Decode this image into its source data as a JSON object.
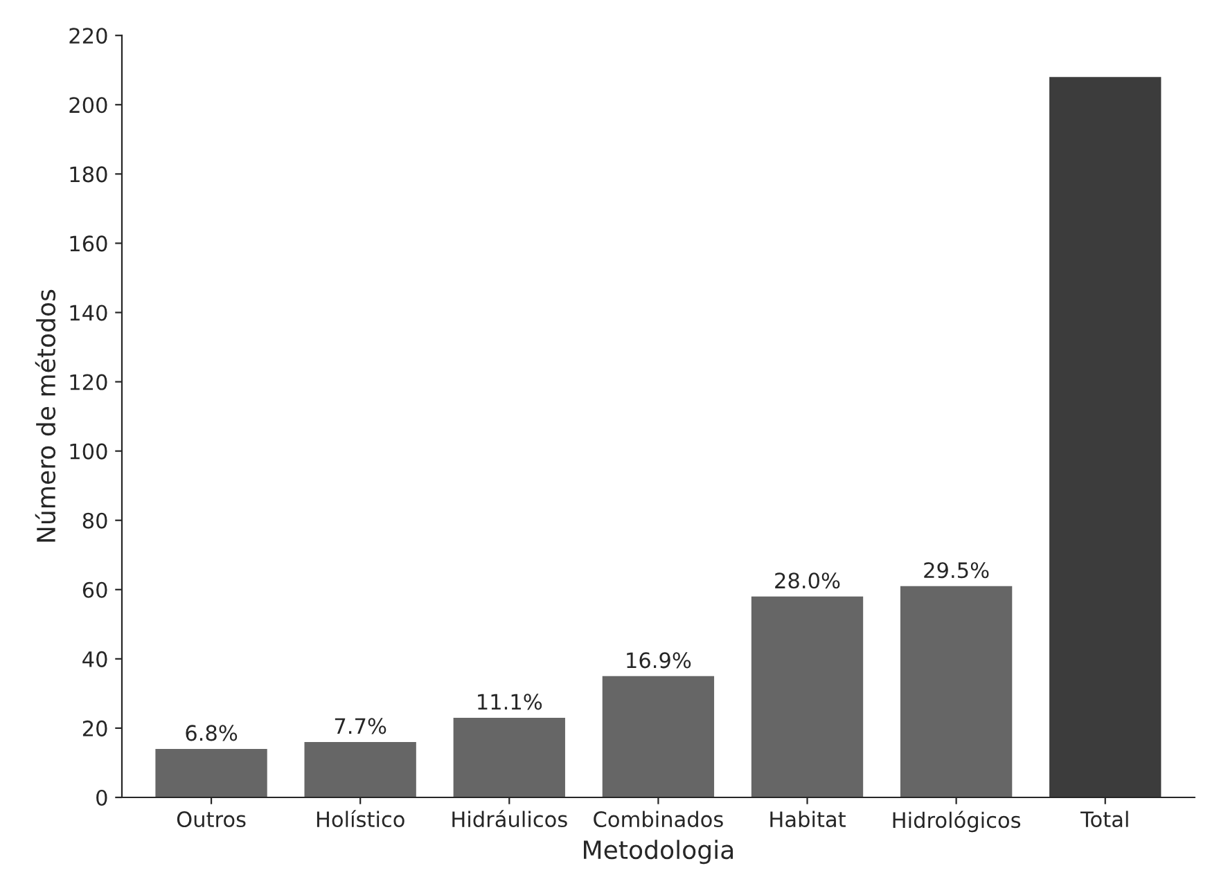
{
  "chart_data": {
    "type": "bar",
    "xlabel": "Metodologia",
    "ylabel": "Número de métodos",
    "categories": [
      "Outros",
      "Holístico",
      "Hidráulicos",
      "Combinados",
      "Habitat",
      "Hidrológicos",
      "Total"
    ],
    "values": [
      14,
      16,
      23,
      35,
      58,
      61,
      208
    ],
    "colors": [
      "#666666",
      "#666666",
      "#666666",
      "#666666",
      "#666666",
      "#666666",
      "#3c3c3c"
    ],
    "annotations": [
      {
        "text": "6.8%",
        "x": "Outros",
        "y": 14
      },
      {
        "text": "7.7%",
        "x": "Holístico",
        "y": 16
      },
      {
        "text": "11.1%",
        "x": "Hidráulicos",
        "y": 23
      },
      {
        "text": "16.9%",
        "x": "Combinados",
        "y": 35
      },
      {
        "text": "28.0%",
        "x": "Habitat",
        "y": 58
      },
      {
        "text": "29.5%",
        "x": "Hidrológicos",
        "y": 61
      }
    ],
    "ylim": [
      0,
      220
    ],
    "yticks": [
      0,
      20,
      40,
      60,
      80,
      100,
      120,
      140,
      160,
      180,
      200,
      220
    ],
    "grid": false,
    "legend": false
  }
}
